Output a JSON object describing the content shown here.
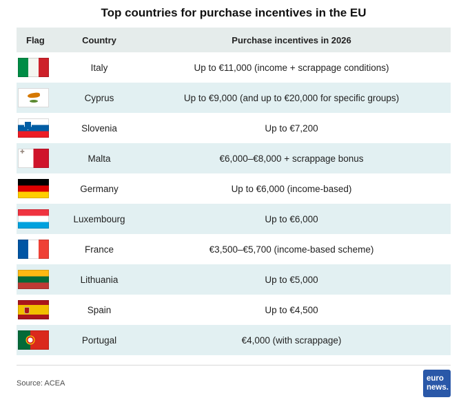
{
  "title": "Top countries for purchase incentives in the EU",
  "table": {
    "headers": {
      "flag": "Flag",
      "country": "Country",
      "incentive": "Purchase incentives in 2026"
    },
    "rows": [
      {
        "country": "Italy",
        "flag_icon": "italy-flag-icon",
        "incentive": "Up to €11,000 (income + scrappage conditions)"
      },
      {
        "country": "Cyprus",
        "flag_icon": "cyprus-flag-icon",
        "incentive": "Up to €9,000 (and up to €20,000 for specific groups)"
      },
      {
        "country": "Slovenia",
        "flag_icon": "slovenia-flag-icon",
        "incentive": "Up to €7,200"
      },
      {
        "country": "Malta",
        "flag_icon": "malta-flag-icon",
        "incentive": "€6,000–€8,000 + scrappage bonus"
      },
      {
        "country": "Germany",
        "flag_icon": "germany-flag-icon",
        "incentive": "Up to €6,000 (income-based)"
      },
      {
        "country": "Luxembourg",
        "flag_icon": "luxembourg-flag-icon",
        "incentive": "Up to €6,000"
      },
      {
        "country": "France",
        "flag_icon": "france-flag-icon",
        "incentive": "€3,500–€5,700 (income-based scheme)"
      },
      {
        "country": "Lithuania",
        "flag_icon": "lithuania-flag-icon",
        "incentive": "Up to €5,000"
      },
      {
        "country": "Spain",
        "flag_icon": "spain-flag-icon",
        "incentive": "Up to €4,500"
      },
      {
        "country": "Portugal",
        "flag_icon": "portugal-flag-icon",
        "incentive": "€4,000 (with scrappage)"
      }
    ]
  },
  "footer": {
    "source": "Source: ACEA",
    "logo_lines": [
      "euro",
      "news."
    ]
  },
  "colors": {
    "header_bg": "#e5eceb",
    "zebra_bg": "#e2f0f2",
    "logo_blue": "#2a58a8"
  },
  "chart_data": {
    "type": "table",
    "title": "Top countries for purchase incentives in the EU",
    "columns": [
      "Flag",
      "Country",
      "Purchase incentives in 2026"
    ],
    "rows": [
      [
        "Italy",
        "Up to €11,000 (income + scrappage conditions)"
      ],
      [
        "Cyprus",
        "Up to €9,000 (and up to €20,000 for specific groups)"
      ],
      [
        "Slovenia",
        "Up to €7,200"
      ],
      [
        "Malta",
        "€6,000–€8,000 + scrappage bonus"
      ],
      [
        "Germany",
        "Up to €6,000 (income-based)"
      ],
      [
        "Luxembourg",
        "Up to €6,000"
      ],
      [
        "France",
        "€3,500–€5,700 (income-based scheme)"
      ],
      [
        "Lithuania",
        "Up to €5,000"
      ],
      [
        "Spain",
        "Up to €4,500"
      ],
      [
        "Portugal",
        "€4,000 (with scrappage)"
      ]
    ],
    "max_incentive_eur": [
      11000,
      9000,
      7200,
      8000,
      6000,
      6000,
      5700,
      5000,
      4500,
      4000
    ],
    "source": "ACEA"
  }
}
